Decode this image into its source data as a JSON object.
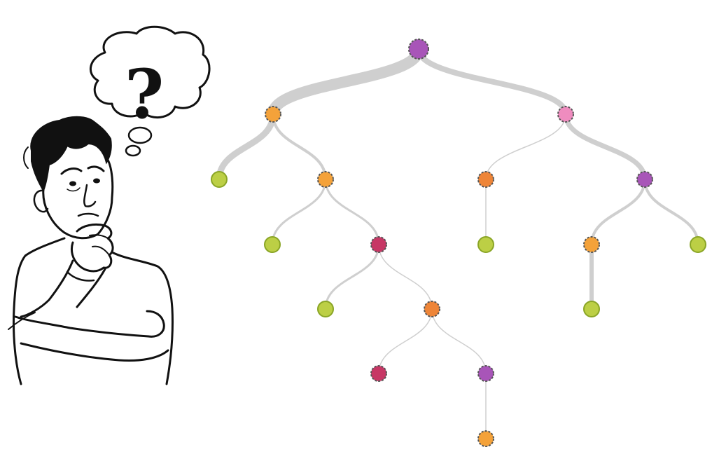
{
  "illustration": {
    "subject": "thinking-person",
    "bubble_symbol": "?"
  },
  "tree": {
    "colors": {
      "purple": "#a855b8",
      "orange": "#f4a23a",
      "dark_orange": "#ee8538",
      "pink": "#ef8cbf",
      "green": "#bccf45",
      "green_stroke": "#8aa526",
      "crimson": "#c73765",
      "edge": "#cfcfcf"
    },
    "nodes": [
      {
        "id": "root",
        "color": "purple",
        "dashed": true
      },
      {
        "id": "a",
        "color": "orange",
        "dashed": true
      },
      {
        "id": "b",
        "color": "pink",
        "dashed": true
      },
      {
        "id": "a1",
        "color": "green",
        "dashed": false
      },
      {
        "id": "a2",
        "color": "orange",
        "dashed": true
      },
      {
        "id": "b1",
        "color": "dark_orange",
        "dashed": true
      },
      {
        "id": "b2",
        "color": "purple",
        "dashed": true
      },
      {
        "id": "a2l",
        "color": "green",
        "dashed": false
      },
      {
        "id": "a2r",
        "color": "crimson",
        "dashed": true
      },
      {
        "id": "b1c",
        "color": "green",
        "dashed": false
      },
      {
        "id": "b2l",
        "color": "orange",
        "dashed": true
      },
      {
        "id": "b2r",
        "color": "green",
        "dashed": false
      },
      {
        "id": "a2rl",
        "color": "green",
        "dashed": false
      },
      {
        "id": "a2rr",
        "color": "dark_orange",
        "dashed": true
      },
      {
        "id": "b2lc",
        "color": "green",
        "dashed": false
      },
      {
        "id": "a2rrl",
        "color": "crimson",
        "dashed": true
      },
      {
        "id": "a2rrr",
        "color": "purple",
        "dashed": true
      },
      {
        "id": "a2rrrc",
        "color": "orange",
        "dashed": true
      }
    ],
    "edges": [
      {
        "from": "root",
        "to": "a",
        "weight": 16
      },
      {
        "from": "root",
        "to": "b",
        "weight": 8
      },
      {
        "from": "a",
        "to": "a1",
        "weight": 9
      },
      {
        "from": "a",
        "to": "a2",
        "weight": 4
      },
      {
        "from": "b",
        "to": "b1",
        "weight": 1.5
      },
      {
        "from": "b",
        "to": "b2",
        "weight": 7
      },
      {
        "from": "a2",
        "to": "a2l",
        "weight": 3
      },
      {
        "from": "a2",
        "to": "a2r",
        "weight": 3
      },
      {
        "from": "b1",
        "to": "b1c",
        "weight": 1.5
      },
      {
        "from": "b2",
        "to": "b2l",
        "weight": 4
      },
      {
        "from": "b2",
        "to": "b2r",
        "weight": 4
      },
      {
        "from": "a2r",
        "to": "a2rl",
        "weight": 3
      },
      {
        "from": "a2r",
        "to": "a2rr",
        "weight": 1.5
      },
      {
        "from": "b2l",
        "to": "b2lc",
        "weight": 6
      },
      {
        "from": "a2rr",
        "to": "a2rrl",
        "weight": 1.5
      },
      {
        "from": "a2rr",
        "to": "a2rrr",
        "weight": 1.5
      },
      {
        "from": "a2rrr",
        "to": "a2rrrc",
        "weight": 1.5
      }
    ]
  }
}
